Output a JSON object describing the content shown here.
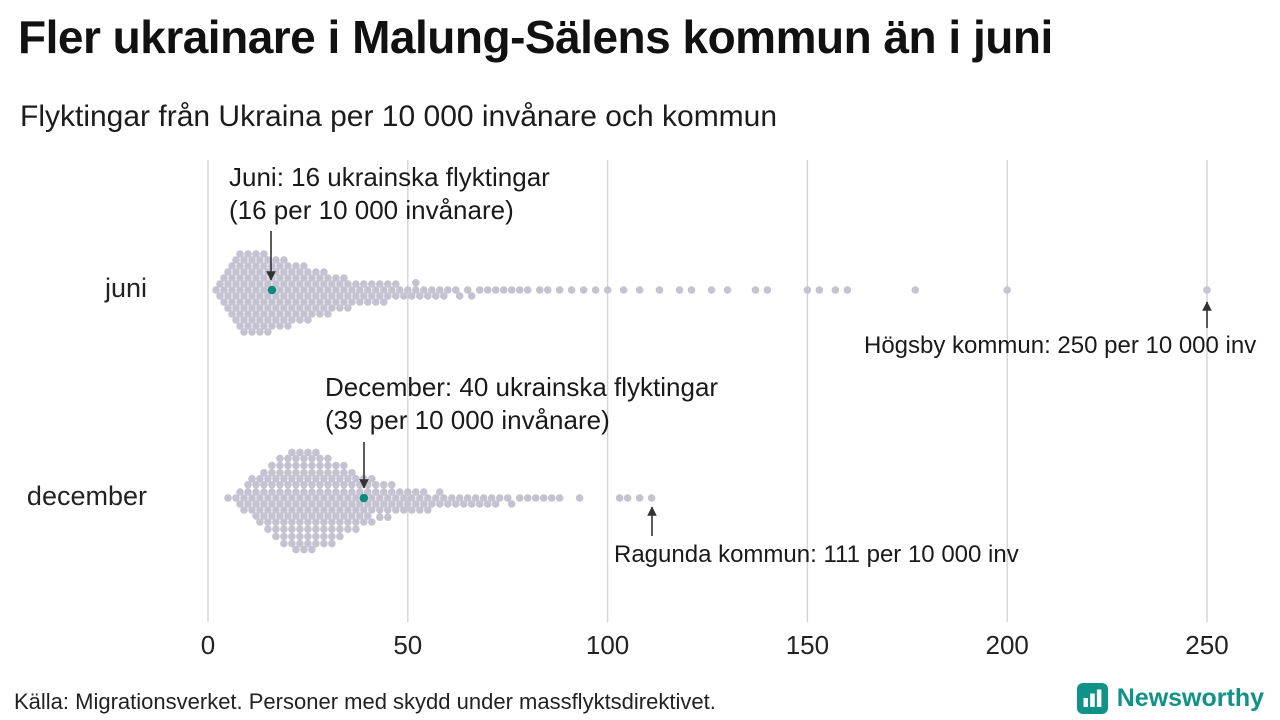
{
  "title": "Fler ukrainare i Malung-Sälens kommun än i juni",
  "subtitle": "Flyktingar från Ukraina per 10 000 invånare och kommun",
  "footer": {
    "source": "Källa: Migrationsverket. Personer med skydd under massflyktsdirektivet."
  },
  "brand": {
    "name": "Newsworthy",
    "color": "#0f9287"
  },
  "colors": {
    "dot": "#c5c2d2",
    "highlight": "#0c8b7d",
    "gridline": "#d4d4d4",
    "arrow": "#333333",
    "text": "#1a1a1a"
  },
  "chart_data": {
    "type": "beeswarm",
    "title": "Fler ukrainare i Malung-Sälens kommun än i juni",
    "subtitle": "Flyktingar från Ukraina per 10 000 invånare och kommun",
    "xlabel": "",
    "ylabel": "",
    "x_axis": {
      "min": 0,
      "max": 250,
      "ticks": [
        0,
        50,
        100,
        150,
        200,
        250
      ],
      "gridlines": true
    },
    "rows": [
      {
        "label": "juni",
        "highlight": {
          "value": 16,
          "annotation_line1": "Juni: 16 ukrainska flyktingar",
          "annotation_line2": "(16 per 10 000 invånare)"
        },
        "outlier": {
          "value": 250,
          "label": "Högsby kommun: 250 per 10 000 inv"
        },
        "values": [
          2,
          3,
          3,
          4,
          4,
          4,
          5,
          5,
          5,
          5,
          6,
          6,
          6,
          6,
          6,
          7,
          7,
          7,
          7,
          7,
          7,
          8,
          8,
          8,
          8,
          8,
          8,
          8,
          9,
          9,
          9,
          9,
          9,
          9,
          9,
          10,
          10,
          10,
          10,
          10,
          10,
          10,
          11,
          11,
          11,
          11,
          11,
          11,
          11,
          12,
          12,
          12,
          12,
          12,
          12,
          12,
          13,
          13,
          13,
          13,
          13,
          13,
          13,
          14,
          14,
          14,
          14,
          14,
          14,
          14,
          15,
          15,
          15,
          15,
          15,
          15,
          15,
          16,
          16,
          16,
          16,
          16,
          16,
          17,
          17,
          17,
          17,
          17,
          17,
          18,
          18,
          18,
          18,
          18,
          18,
          19,
          19,
          19,
          19,
          19,
          19,
          20,
          20,
          20,
          20,
          20,
          20,
          21,
          21,
          21,
          21,
          21,
          22,
          22,
          22,
          22,
          22,
          23,
          23,
          23,
          23,
          23,
          24,
          24,
          24,
          24,
          24,
          25,
          25,
          25,
          25,
          25,
          26,
          26,
          26,
          26,
          27,
          27,
          27,
          27,
          28,
          28,
          28,
          28,
          29,
          29,
          29,
          29,
          30,
          30,
          30,
          30,
          31,
          31,
          31,
          32,
          32,
          32,
          33,
          33,
          33,
          34,
          34,
          34,
          35,
          35,
          35,
          36,
          36,
          37,
          37,
          38,
          38,
          39,
          39,
          40,
          40,
          41,
          41,
          42,
          42,
          43,
          43,
          44,
          44,
          45,
          45,
          46,
          47,
          47,
          48,
          49,
          50,
          51,
          52,
          52,
          53,
          54,
          55,
          56,
          57,
          58,
          59,
          60,
          62,
          63,
          65,
          66,
          68,
          70,
          72,
          74,
          76,
          78,
          80,
          83,
          85,
          88,
          91,
          94,
          97,
          100,
          104,
          108,
          113,
          118,
          121,
          126,
          130,
          137,
          140,
          150,
          153,
          157,
          160,
          177,
          200,
          250
        ]
      },
      {
        "label": "december",
        "highlight": {
          "value": 39,
          "annotation_line1": "December: 40 ukrainska flyktingar",
          "annotation_line2": "(39 per 10 000 invånare)"
        },
        "outlier": {
          "value": 111,
          "label": "Ragunda kommun: 111 per 10 000 inv"
        },
        "values": [
          5,
          7,
          8,
          8,
          9,
          9,
          10,
          10,
          10,
          11,
          11,
          11,
          12,
          12,
          12,
          12,
          13,
          13,
          13,
          13,
          14,
          14,
          14,
          14,
          14,
          15,
          15,
          15,
          15,
          15,
          16,
          16,
          16,
          16,
          16,
          16,
          17,
          17,
          17,
          17,
          17,
          17,
          18,
          18,
          18,
          18,
          18,
          18,
          18,
          19,
          19,
          19,
          19,
          19,
          19,
          19,
          20,
          20,
          20,
          20,
          20,
          20,
          20,
          21,
          21,
          21,
          21,
          21,
          21,
          21,
          21,
          22,
          22,
          22,
          22,
          22,
          22,
          22,
          22,
          23,
          23,
          23,
          23,
          23,
          23,
          23,
          23,
          24,
          24,
          24,
          24,
          24,
          24,
          24,
          24,
          25,
          25,
          25,
          25,
          25,
          25,
          25,
          25,
          26,
          26,
          26,
          26,
          26,
          26,
          26,
          26,
          27,
          27,
          27,
          27,
          27,
          27,
          27,
          27,
          28,
          28,
          28,
          28,
          28,
          28,
          28,
          29,
          29,
          29,
          29,
          29,
          29,
          29,
          30,
          30,
          30,
          30,
          30,
          30,
          30,
          31,
          31,
          31,
          31,
          31,
          31,
          31,
          32,
          32,
          32,
          32,
          32,
          32,
          33,
          33,
          33,
          33,
          33,
          33,
          34,
          34,
          34,
          34,
          34,
          34,
          35,
          35,
          35,
          35,
          35,
          36,
          36,
          36,
          36,
          36,
          37,
          37,
          37,
          37,
          37,
          38,
          38,
          38,
          38,
          39,
          39,
          39,
          39,
          40,
          40,
          40,
          40,
          41,
          41,
          41,
          41,
          42,
          42,
          42,
          43,
          43,
          43,
          44,
          44,
          44,
          45,
          45,
          45,
          46,
          46,
          46,
          47,
          47,
          48,
          48,
          49,
          49,
          50,
          50,
          51,
          51,
          52,
          52,
          53,
          53,
          54,
          54,
          55,
          55,
          56,
          57,
          58,
          58,
          59,
          60,
          61,
          62,
          63,
          64,
          65,
          66,
          67,
          68,
          69,
          70,
          71,
          72,
          73,
          75,
          76,
          78,
          80,
          82,
          84,
          86,
          88,
          93,
          103,
          105,
          108,
          111
        ]
      }
    ]
  }
}
